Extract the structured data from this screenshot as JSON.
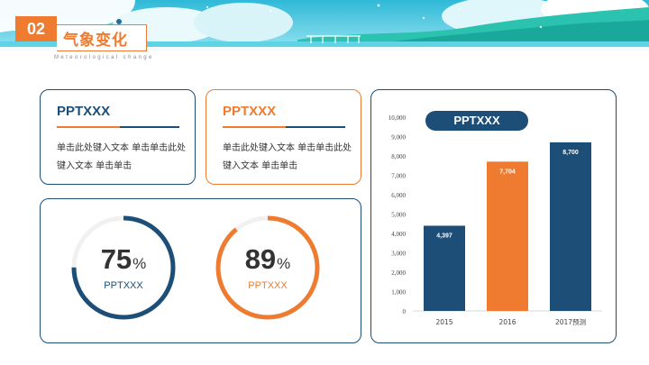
{
  "header": {
    "number": "02",
    "title": "气象变化",
    "subtitle": "Meteorological change"
  },
  "cards": [
    {
      "title": "PPTXXX",
      "body": "单击此处键入文本 单击单击此处键入文本 单击单击"
    },
    {
      "title": "PPTXXX",
      "body": "单击此处键入文本 单击单击此处键入文本 单击单击"
    }
  ],
  "rings": [
    {
      "value": 75,
      "value_text": "75",
      "unit": "%",
      "label": "PPTXXX",
      "color": "#1c4e78"
    },
    {
      "value": 89,
      "value_text": "89",
      "unit": "%",
      "label": "PPTXXX",
      "color": "#ee7b30"
    }
  ],
  "chart_data": {
    "type": "bar",
    "title": "PPTXXX",
    "categories": [
      "2015",
      "2016",
      "2017预测"
    ],
    "values": [
      4397,
      7704,
      8700
    ],
    "value_labels": [
      "4,397",
      "7,704",
      "8,700"
    ],
    "bar_colors": [
      "#1c4e78",
      "#ee7b30",
      "#1c4e78"
    ],
    "ylim": [
      0,
      10000
    ],
    "yticks": [
      "0",
      "1,000",
      "2,000",
      "3,000",
      "4,000",
      "5,000",
      "6,000",
      "7,000",
      "8,000",
      "9,000",
      "10,000"
    ],
    "xlabel": "",
    "ylabel": "",
    "grid": false
  },
  "colors": {
    "accent": "#ee7b30",
    "primary": "#1c4e78",
    "track": "#f1f1f1"
  }
}
